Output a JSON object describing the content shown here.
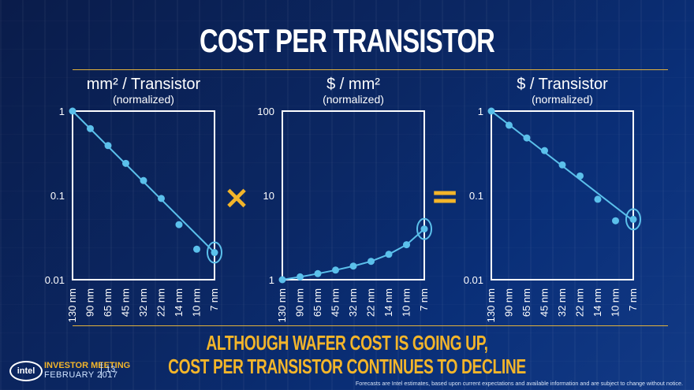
{
  "slide": {
    "title": "COST PER TRANSISTOR",
    "bottom_line1": "ALTHOUGH WAFER COST IS GOING UP,",
    "bottom_line2": "COST PER TRANSISTOR  CONTINUES TO DECLINE",
    "operator_multiply": "×",
    "operator_equals": "=",
    "footer": {
      "logo": "intel",
      "event": "INVESTOR MEETING",
      "date": "FEBRUARY 2017",
      "page": "13",
      "footnote": "Forecasts are Intel estimates, based upon current expectations and available information and are subject to change without notice."
    },
    "colors": {
      "line": "#5bc0eb",
      "accent": "#f3b52a",
      "axis": "#ffffff"
    }
  },
  "chart_data": [
    {
      "type": "line",
      "title": "mm² / Transistor",
      "subtitle": "(normalized)",
      "y_scale": "log",
      "ylim": [
        0.01,
        1
      ],
      "ytick_labels": [
        "1",
        "0.1",
        "0.01"
      ],
      "categories": [
        "130 nm",
        "90 nm",
        "65 nm",
        "45 nm",
        "32 nm",
        "22 nm",
        "14 nm",
        "10 nm",
        "7 nm"
      ],
      "values": [
        1,
        0.62,
        0.39,
        0.24,
        0.15,
        0.092,
        0.045,
        0.023,
        0.021
      ],
      "trend": [
        1,
        0.021
      ],
      "highlight": "7 nm"
    },
    {
      "type": "line",
      "title": "$ / mm²",
      "subtitle": "(normalized)",
      "y_scale": "log",
      "ylim": [
        1,
        100
      ],
      "ytick_labels": [
        "100",
        "10",
        "1"
      ],
      "categories": [
        "130 nm",
        "90 nm",
        "65 nm",
        "45 nm",
        "32 nm",
        "22 nm",
        "14 nm",
        "10 nm",
        "7 nm"
      ],
      "values": [
        1,
        1.08,
        1.18,
        1.3,
        1.45,
        1.65,
        2.0,
        2.6,
        4.0
      ],
      "highlight": "7 nm"
    },
    {
      "type": "line",
      "title": "$ / Transistor",
      "subtitle": "(normalized)",
      "y_scale": "log",
      "ylim": [
        0.01,
        1
      ],
      "ytick_labels": [
        "1",
        "0.1",
        "0.01"
      ],
      "categories": [
        "130 nm",
        "90 nm",
        "65 nm",
        "45 nm",
        "32 nm",
        "22 nm",
        "14 nm",
        "10 nm",
        "7 nm"
      ],
      "values": [
        1,
        0.68,
        0.48,
        0.34,
        0.23,
        0.17,
        0.09,
        0.05,
        0.052
      ],
      "trend": [
        1,
        0.05
      ],
      "highlight": "7 nm"
    }
  ]
}
